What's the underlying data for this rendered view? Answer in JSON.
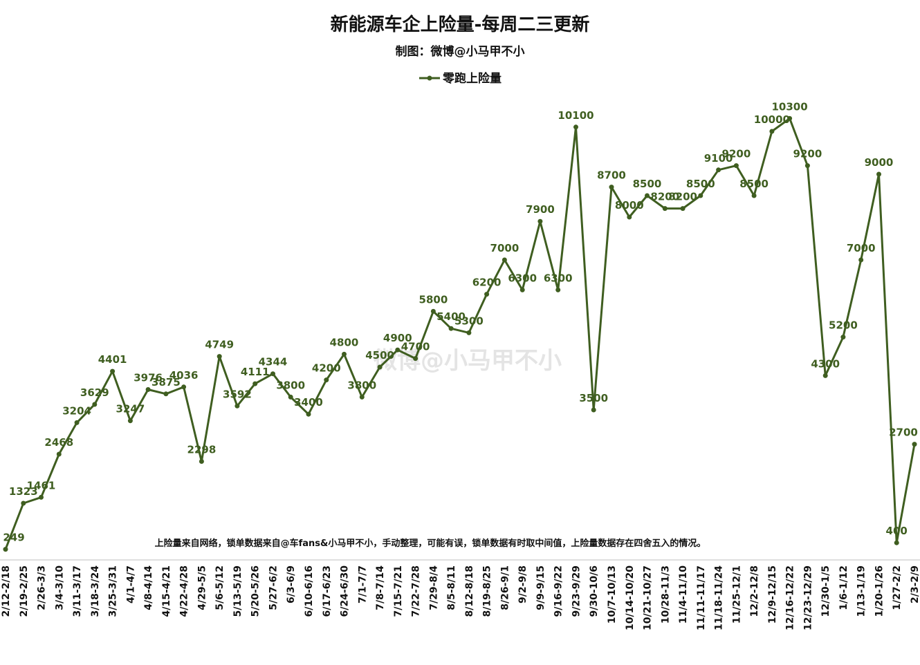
{
  "chart_data": {
    "type": "line",
    "title": "新能源车企上险量-每周二三更新",
    "subtitle": "制图：微博@小马甲不小",
    "note": "上险量来自网络，锁单数据来自@车fans&小马甲不小，手动整理，可能有误，锁单数据有时取中间值，上险量数据存在四舍五入的情况。",
    "watermark": "微博@小马甲不小",
    "legend": "top-center",
    "grid": false,
    "ylim": [
      0,
      11000
    ],
    "categories": [
      "2/12-2/18",
      "2/19-2/25",
      "2/26-3/3",
      "3/4-3/10",
      "3/11-3/17",
      "3/18-3/24",
      "3/25-3/31",
      "4/1-4/7",
      "4/8-4/14",
      "4/15-4/21",
      "4/22-4/28",
      "4/29-5/5",
      "5/6-5/12",
      "5/13-5/19",
      "5/20-5/26",
      "5/27-6/2",
      "6/3-6/9",
      "6/10-6/16",
      "6/17-6/23",
      "6/24-6/30",
      "7/1-7/7",
      "7/8-7/14",
      "7/15-7/21",
      "7/22-7/28",
      "7/29-8/4",
      "8/5-8/11",
      "8/12-8/18",
      "8/19-8/25",
      "8/26-9/1",
      "9/2-9/8",
      "9/9-9/15",
      "9/16-9/22",
      "9/23-9/29",
      "9/30-10/6",
      "10/7-10/13",
      "10/14-10/20",
      "10/21-10/27",
      "10/28-11/3",
      "11/4-11/10",
      "11/11-11/17",
      "11/18-11/24",
      "11/25-12/1",
      "12/2-12/8",
      "12/9-12/15",
      "12/16-12/22",
      "12/23-12/29",
      "12/30-1/5",
      "1/6-1/12",
      "1/13-1/19",
      "1/20-1/26",
      "1/27-2/2",
      "2/3-2/9"
    ],
    "series": [
      {
        "name": "零跑上险量",
        "color": "#3f5e20",
        "values": [
          249,
          1323,
          1461,
          2468,
          3204,
          3629,
          4401,
          3247,
          3976,
          3875,
          4036,
          2298,
          4749,
          3592,
          4111,
          4344,
          3800,
          3400,
          4200,
          4800,
          3800,
          4500,
          4900,
          4700,
          5800,
          5400,
          5300,
          6200,
          7000,
          6300,
          7900,
          6300,
          10100,
          3500,
          8700,
          8000,
          8500,
          8200,
          8200,
          8500,
          9100,
          9200,
          8500,
          10000,
          10300,
          9200,
          4300,
          5200,
          7000,
          9000,
          400,
          2700
        ]
      }
    ]
  }
}
